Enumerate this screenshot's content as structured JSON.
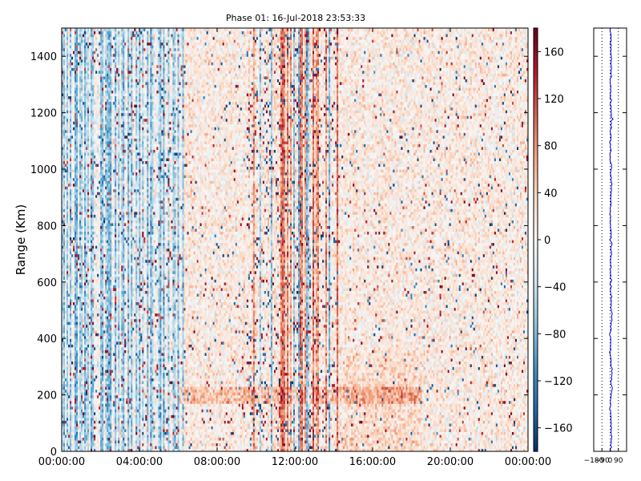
{
  "chart_data": {
    "type": "heatmap",
    "title": "Phase 01: 16-Jul-2018 23:53:33",
    "ylabel": "Range (Km)",
    "xlabel": "",
    "ylim": [
      0,
      1500
    ],
    "y_ticks": [
      "0",
      "200",
      "400",
      "600",
      "800",
      "1000",
      "1200",
      "1400"
    ],
    "x_ticks": [
      "00:00:00",
      "04:00:00",
      "08:00:00",
      "12:00:00",
      "16:00:00",
      "20:00:00",
      "00:00:00"
    ],
    "x_hours": [
      0,
      4,
      8,
      12,
      16,
      20,
      24
    ],
    "colorbar": {
      "range": [
        -180,
        180
      ],
      "ticks": [
        "160",
        "120",
        "80",
        "40",
        "0",
        "−40",
        "−80",
        "−120",
        "−160"
      ],
      "tick_values": [
        160,
        120,
        80,
        40,
        0,
        -40,
        -80,
        -120,
        -160
      ],
      "colormap": "RdBu_r",
      "colors": [
        "#053061",
        "#2166ac",
        "#4393c3",
        "#92c5de",
        "#d1e5f0",
        "#f7f7f7",
        "#fddbc7",
        "#f4a582",
        "#d6604d",
        "#b2182b",
        "#67001f"
      ]
    },
    "profile_panel": {
      "x_ticks": [
        "−180",
        "−90",
        "0",
        "90"
      ],
      "x_tick_values": [
        -180,
        -90,
        0,
        90
      ],
      "xlim": [
        -180,
        180
      ],
      "line_color": "#0000cc",
      "y_range": [
        0,
        1500
      ]
    }
  }
}
